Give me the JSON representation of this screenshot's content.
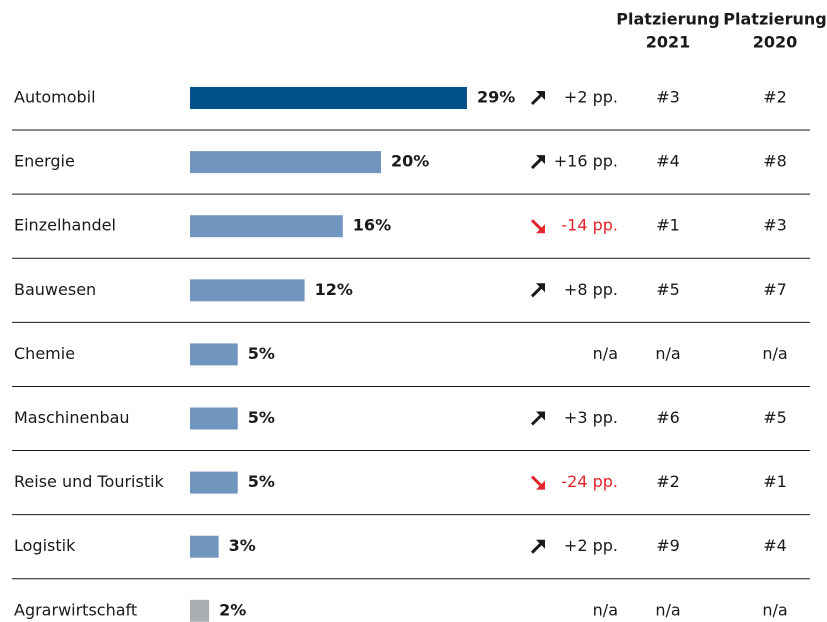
{
  "chart_data": {
    "type": "bar",
    "categories": [
      "Automobil",
      "Energie",
      "Einzelhandel",
      "Bauwesen",
      "Chemie",
      "Maschinenbau",
      "Reise und Touristik",
      "Logistik",
      "Agrarwirtschaft"
    ],
    "values": [
      29,
      20,
      16,
      12,
      5,
      5,
      5,
      3,
      2
    ],
    "value_labels": [
      "29%",
      "20%",
      "16%",
      "12%",
      "5%",
      "5%",
      "5%",
      "3%",
      "2%"
    ],
    "colors": [
      "#00508a",
      "#7096bf",
      "#7096bf",
      "#7096bf",
      "#7096bf",
      "#7096bf",
      "#7096bf",
      "#7096bf",
      "#a9aeb2"
    ],
    "change_values": [
      2,
      16,
      -14,
      8,
      null,
      3,
      -24,
      2,
      null
    ],
    "change_labels": [
      "+2 pp.",
      "+16 pp.",
      "-14 pp.",
      "+8 pp.",
      "n/a",
      "+3 pp.",
      "-24 pp.",
      "+2 pp.",
      "n/a"
    ],
    "rank_headers": [
      {
        "title": "Platzierung",
        "year": "2021"
      },
      {
        "title": "Platzierung",
        "year": "2020"
      }
    ],
    "rank_2021": [
      "#3",
      "#4",
      "#1",
      "#5",
      "n/a",
      "#6",
      "#2",
      "#9",
      "n/a"
    ],
    "rank_2020": [
      "#2",
      "#8",
      "#3",
      "#7",
      "n/a",
      "#5",
      "#1",
      "#4",
      "n/a"
    ]
  }
}
